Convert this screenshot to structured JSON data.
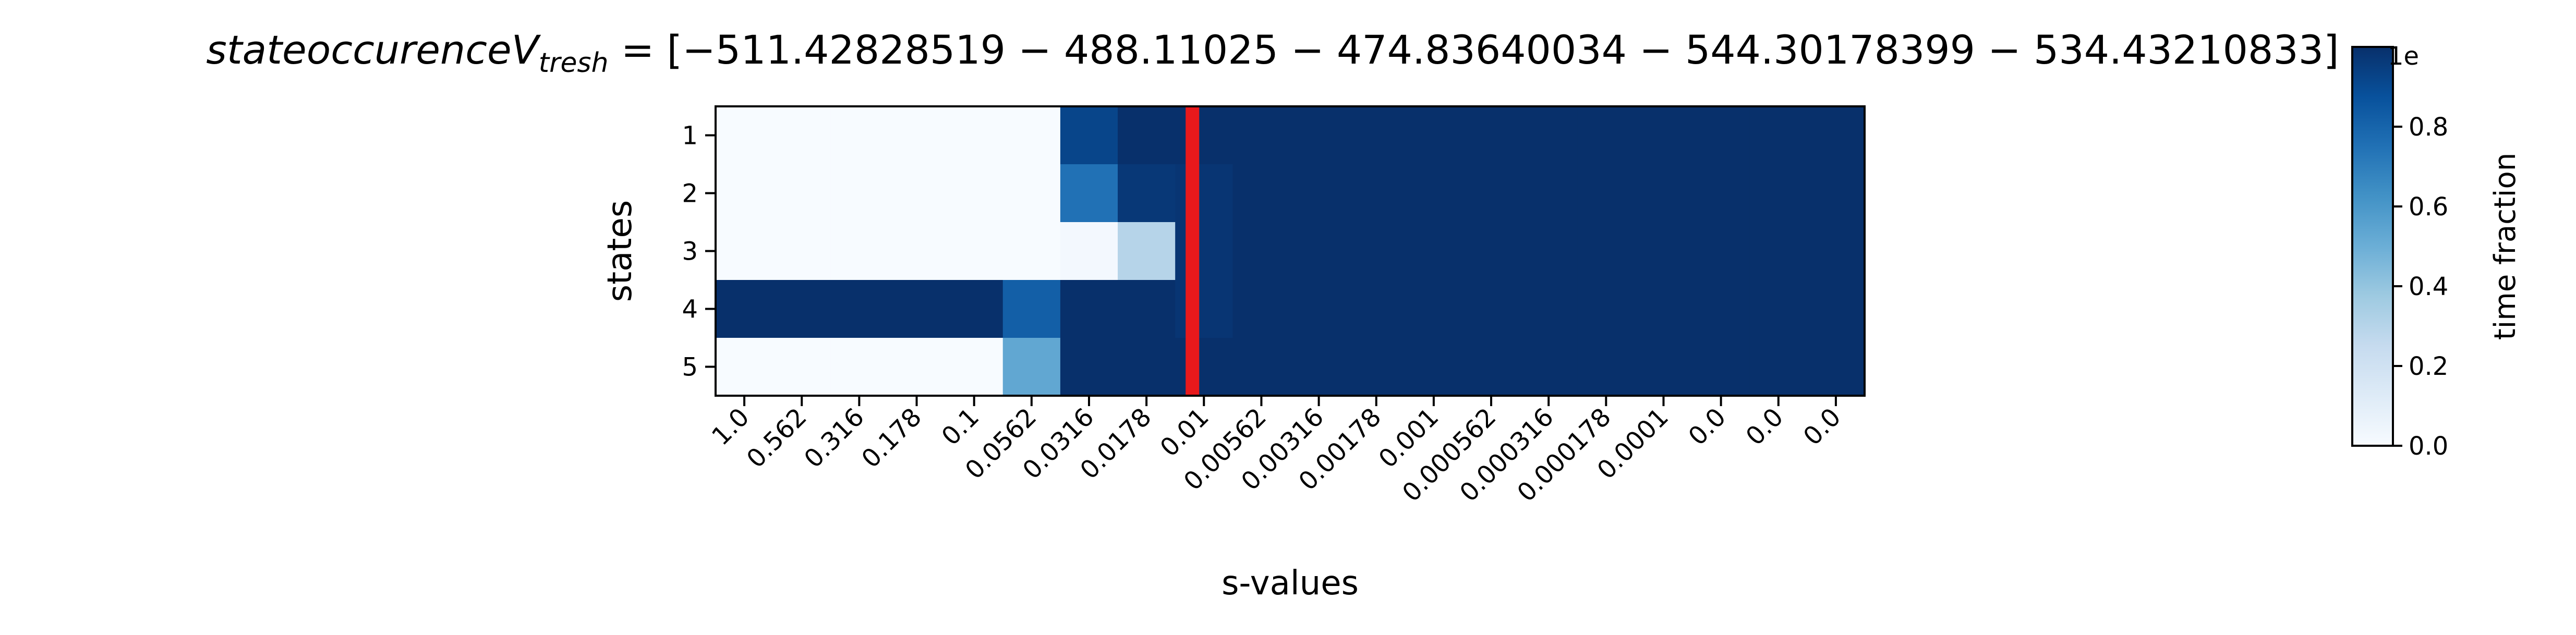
{
  "chart_data": {
    "type": "heatmap",
    "title": {
      "italic": "stateoccurenceV",
      "subscript": "tresh",
      "rest": " = [−511.42828519 − 488.11025 − 474.83640034 − 544.30178399 − 534.43210833]",
      "overlap_glyph": "1e"
    },
    "xlabel": "s-values",
    "ylabel": "states",
    "x_categories": [
      "1.0",
      "0.562",
      "0.316",
      "0.178",
      "0.1",
      "0.0562",
      "0.0316",
      "0.0178",
      "0.01",
      "0.00562",
      "0.00316",
      "0.00178",
      "0.001",
      "0.000562",
      "0.000316",
      "0.000178",
      "0.0001",
      "0.0",
      "0.0",
      "0.0"
    ],
    "y_categories": [
      "1",
      "2",
      "3",
      "4",
      "5"
    ],
    "values": [
      [
        0.0,
        0.0,
        0.0,
        0.0,
        0.0,
        0.0,
        0.92,
        1.0,
        1.0,
        1.0,
        1.0,
        1.0,
        1.0,
        1.0,
        1.0,
        1.0,
        1.0,
        1.0,
        1.0,
        1.0
      ],
      [
        0.0,
        0.0,
        0.0,
        0.0,
        0.0,
        0.0,
        0.75,
        0.97,
        0.98,
        1.0,
        1.0,
        1.0,
        1.0,
        1.0,
        1.0,
        1.0,
        1.0,
        1.0,
        1.0,
        1.0
      ],
      [
        0.0,
        0.0,
        0.0,
        0.0,
        0.0,
        0.0,
        0.02,
        0.3,
        0.98,
        1.0,
        1.0,
        1.0,
        1.0,
        1.0,
        1.0,
        1.0,
        1.0,
        1.0,
        1.0,
        1.0
      ],
      [
        1.0,
        1.0,
        1.0,
        1.0,
        1.0,
        0.82,
        1.0,
        1.0,
        0.98,
        1.0,
        1.0,
        1.0,
        1.0,
        1.0,
        1.0,
        1.0,
        1.0,
        1.0,
        1.0,
        1.0
      ],
      [
        0.0,
        0.0,
        0.0,
        0.0,
        0.0,
        0.53,
        1.0,
        1.0,
        1.0,
        1.0,
        1.0,
        1.0,
        1.0,
        1.0,
        1.0,
        1.0,
        1.0,
        1.0,
        1.0,
        1.0
      ]
    ],
    "vline": {
      "x_index": 7.8,
      "color": "#e8191c"
    },
    "colormap": "Blues",
    "colorbar": {
      "label": "time fraction",
      "ticks": [
        "0.0",
        "0.2",
        "0.4",
        "0.6",
        "0.8"
      ],
      "range": [
        0.0,
        1.0
      ]
    },
    "grid": false
  }
}
